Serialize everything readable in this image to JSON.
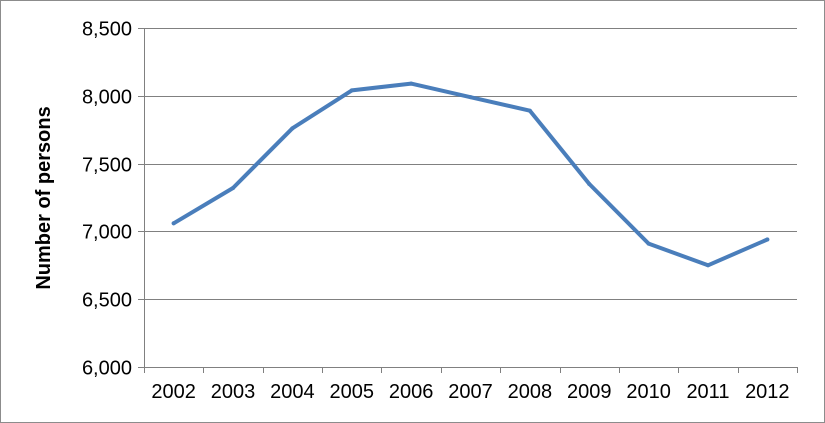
{
  "chart_data": {
    "type": "line",
    "title": "",
    "xlabel": "",
    "ylabel": "Number of persons",
    "categories": [
      "2002",
      "2003",
      "2004",
      "2005",
      "2006",
      "2007",
      "2008",
      "2009",
      "2010",
      "2011",
      "2012"
    ],
    "series": [
      {
        "values": [
          7060,
          7320,
          7760,
          8040,
          8090,
          7990,
          7890,
          7350,
          6910,
          6750,
          6940
        ],
        "color": "#4a7ebb"
      }
    ],
    "ylim": [
      6000,
      8500
    ],
    "yticks": [
      6000,
      6500,
      7000,
      7500,
      8000,
      8500
    ],
    "ytick_labels": [
      "6,000",
      "6,500",
      "7,000",
      "7,500",
      "8,000",
      "8,500"
    ],
    "grid": true,
    "legend": "none",
    "gridline_color": "#808080"
  }
}
